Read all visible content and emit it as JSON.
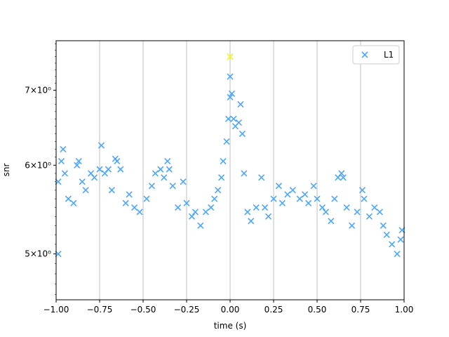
{
  "chart_data": {
    "type": "scatter",
    "title": "",
    "xlabel": "time (s)",
    "ylabel": "snr",
    "xlim": [
      -1.0,
      1.0
    ],
    "ylim": [
      4.55,
      7.75
    ],
    "yscale": "log",
    "grid": "vertical",
    "legend_position": "top-right",
    "x_ticks": [
      -1.0,
      -0.75,
      -0.5,
      -0.25,
      0.0,
      0.25,
      0.5,
      0.75,
      1.0
    ],
    "x_tick_labels": [
      "−1.00",
      "−0.75",
      "−0.50",
      "−0.25",
      "0.00",
      "0.25",
      "0.50",
      "0.75",
      "1.00"
    ],
    "y_ticks": [
      5,
      6,
      7
    ],
    "y_tick_labels": [
      "5×10⁰",
      "6×10⁰",
      "7×10⁰"
    ],
    "series": [
      {
        "name": "L1",
        "marker": "x",
        "color": "#4da6ff",
        "points": [
          [
            -0.99,
            5.0
          ],
          [
            -0.99,
            5.8
          ],
          [
            -0.97,
            6.05
          ],
          [
            -0.96,
            6.2
          ],
          [
            -0.95,
            5.9
          ],
          [
            -0.93,
            5.6
          ],
          [
            -0.9,
            5.55
          ],
          [
            -0.88,
            6.0
          ],
          [
            -0.87,
            6.05
          ],
          [
            -0.85,
            5.8
          ],
          [
            -0.83,
            5.7
          ],
          [
            -0.8,
            5.9
          ],
          [
            -0.78,
            5.85
          ],
          [
            -0.75,
            5.95
          ],
          [
            -0.74,
            6.25
          ],
          [
            -0.72,
            5.9
          ],
          [
            -0.7,
            5.95
          ],
          [
            -0.68,
            5.7
          ],
          [
            -0.66,
            6.08
          ],
          [
            -0.65,
            6.05
          ],
          [
            -0.63,
            5.95
          ],
          [
            -0.6,
            5.55
          ],
          [
            -0.58,
            5.65
          ],
          [
            -0.55,
            5.5
          ],
          [
            -0.52,
            5.45
          ],
          [
            -0.48,
            5.6
          ],
          [
            -0.45,
            5.75
          ],
          [
            -0.43,
            5.9
          ],
          [
            -0.4,
            5.95
          ],
          [
            -0.38,
            5.85
          ],
          [
            -0.36,
            6.05
          ],
          [
            -0.35,
            5.95
          ],
          [
            -0.33,
            5.75
          ],
          [
            -0.3,
            5.5
          ],
          [
            -0.27,
            5.8
          ],
          [
            -0.25,
            5.55
          ],
          [
            -0.22,
            5.4
          ],
          [
            -0.2,
            5.45
          ],
          [
            -0.17,
            5.3
          ],
          [
            -0.14,
            5.45
          ],
          [
            -0.11,
            5.5
          ],
          [
            -0.09,
            5.6
          ],
          [
            -0.07,
            5.7
          ],
          [
            -0.05,
            5.85
          ],
          [
            -0.04,
            6.05
          ],
          [
            -0.02,
            6.3
          ],
          [
            -0.01,
            6.6
          ],
          [
            0.0,
            6.9
          ],
          [
            0.0,
            7.2
          ],
          [
            0.0,
            7.5
          ],
          [
            0.01,
            6.95
          ],
          [
            0.02,
            6.6
          ],
          [
            0.03,
            6.5
          ],
          [
            0.05,
            6.55
          ],
          [
            0.06,
            6.8
          ],
          [
            0.07,
            6.4
          ],
          [
            0.08,
            5.9
          ],
          [
            0.1,
            5.45
          ],
          [
            0.12,
            5.35
          ],
          [
            0.15,
            5.5
          ],
          [
            0.18,
            5.85
          ],
          [
            0.2,
            5.5
          ],
          [
            0.22,
            5.4
          ],
          [
            0.25,
            5.6
          ],
          [
            0.28,
            5.75
          ],
          [
            0.3,
            5.55
          ],
          [
            0.33,
            5.65
          ],
          [
            0.36,
            5.7
          ],
          [
            0.4,
            5.6
          ],
          [
            0.43,
            5.65
          ],
          [
            0.45,
            5.55
          ],
          [
            0.48,
            5.75
          ],
          [
            0.5,
            5.6
          ],
          [
            0.53,
            5.5
          ],
          [
            0.55,
            5.45
          ],
          [
            0.58,
            5.35
          ],
          [
            0.6,
            5.6
          ],
          [
            0.62,
            5.85
          ],
          [
            0.64,
            5.9
          ],
          [
            0.65,
            5.85
          ],
          [
            0.67,
            5.5
          ],
          [
            0.7,
            5.3
          ],
          [
            0.73,
            5.45
          ],
          [
            0.76,
            5.7
          ],
          [
            0.77,
            5.6
          ],
          [
            0.8,
            5.4
          ],
          [
            0.83,
            5.5
          ],
          [
            0.86,
            5.45
          ],
          [
            0.88,
            5.3
          ],
          [
            0.9,
            5.2
          ],
          [
            0.93,
            5.1
          ],
          [
            0.96,
            5.0
          ],
          [
            0.98,
            5.15
          ],
          [
            0.99,
            5.25
          ]
        ]
      }
    ],
    "highlight_point": {
      "x": 0.0,
      "y": 7.5,
      "color": "#ffff00"
    }
  }
}
